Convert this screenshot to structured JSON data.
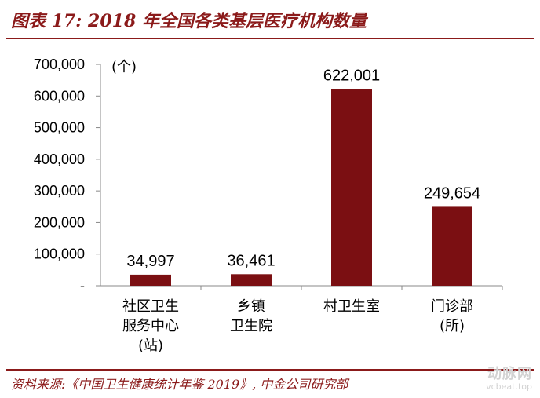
{
  "figure": {
    "title": "图表 17: 2018 年全国各类基层医疗机构数量",
    "source": "资料来源:《中国卫生健康统计年鉴 2019》, 中金公司研究部",
    "watermark": {
      "cn": "动脉网",
      "en": "vcbeat.top"
    }
  },
  "colors": {
    "bar": "#7b0f12",
    "accent": "#8b1a1a",
    "axis": "#888888"
  },
  "chart_data": {
    "type": "bar",
    "title": "",
    "unit_label": "(个)",
    "xlabel": "",
    "ylabel": "",
    "ylim": [
      0,
      700000
    ],
    "grid": false,
    "legend": "none",
    "y_ticks": [
      {
        "value": 0,
        "label": "-"
      },
      {
        "value": 100000,
        "label": "100,000"
      },
      {
        "value": 200000,
        "label": "200,000"
      },
      {
        "value": 300000,
        "label": "300,000"
      },
      {
        "value": 400000,
        "label": "400,000"
      },
      {
        "value": 500000,
        "label": "500,000"
      },
      {
        "value": 600000,
        "label": "600,000"
      },
      {
        "value": 700000,
        "label": "700,000"
      }
    ],
    "categories": [
      [
        "社区卫生",
        "服务中心",
        "(站)"
      ],
      [
        "乡镇",
        "卫生院"
      ],
      [
        "村卫生室"
      ],
      [
        "门诊部",
        "(所)"
      ]
    ],
    "values": [
      34997,
      36461,
      622001,
      249654
    ],
    "data_labels": [
      "34,997",
      "36,461",
      "622,001",
      "249,654"
    ]
  }
}
